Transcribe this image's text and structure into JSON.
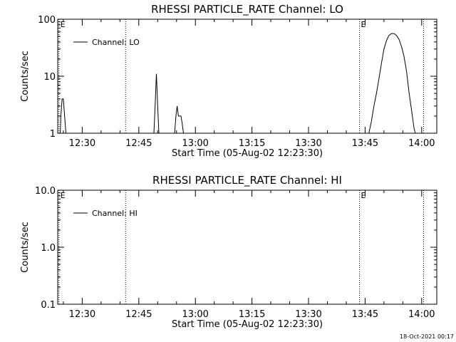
{
  "footer_timestamp": "18-Oct-2021 00:17",
  "chart_data": [
    {
      "type": "line",
      "title": "RHESSI PARTICLE_RATE Channel: LO",
      "xlabel": "Start Time (05-Aug-02 12:23:30)",
      "ylabel": "Counts/sec",
      "yscale": "log",
      "ylim": [
        1,
        100
      ],
      "yticks": [
        1,
        10,
        100
      ],
      "ytick_labels": [
        "1",
        "10",
        "100"
      ],
      "xlim": [
        "12:23:30",
        "14:04:00"
      ],
      "xticks": [
        "12:30",
        "12:45",
        "13:00",
        "13:15",
        "13:30",
        "13:45",
        "14:00"
      ],
      "grid": false,
      "legend": {
        "placement": "top-left",
        "entries": [
          "Channel: LO"
        ]
      },
      "markers": [
        {
          "time": "12:23:50",
          "label": "E"
        },
        {
          "time": "12:41:30",
          "label": ""
        },
        {
          "time": "13:43:30",
          "label": "E"
        },
        {
          "time": "14:00:30",
          "label": ""
        }
      ],
      "series": [
        {
          "name": "Channel: LO",
          "x": [
            "12:24:10",
            "12:24:20",
            "12:24:40",
            "12:25:00",
            "12:25:20",
            "12:25:40",
            "12:49:00",
            "12:49:20",
            "12:49:40",
            "12:50:00",
            "12:50:20",
            "12:50:40",
            "12:54:30",
            "12:54:50",
            "12:55:10",
            "12:55:30",
            "12:55:50",
            "12:56:10",
            "12:56:30",
            "12:56:50",
            "13:46:00",
            "13:46:40",
            "13:47:20",
            "13:48:00",
            "13:48:40",
            "13:49:20",
            "13:50:00",
            "13:50:40",
            "13:51:20",
            "13:52:00",
            "13:52:40",
            "13:53:20",
            "13:54:00",
            "13:54:40",
            "13:55:20",
            "13:56:00",
            "13:56:40",
            "13:57:20",
            "13:58:00",
            "13:58:20"
          ],
          "values": [
            1,
            2,
            4,
            4,
            2,
            1,
            1,
            3,
            11,
            3,
            1,
            1,
            1,
            2,
            3,
            2,
            2,
            2,
            1.5,
            1,
            1,
            1.6,
            3,
            5,
            9,
            17,
            30,
            42,
            52,
            56,
            56,
            52,
            44,
            33,
            22,
            12,
            5,
            2.5,
            1.2,
            1
          ]
        }
      ]
    },
    {
      "type": "line",
      "title": "RHESSI PARTICLE_RATE Channel: HI",
      "xlabel": "Start Time (05-Aug-02 12:23:30)",
      "ylabel": "Counts/sec",
      "yscale": "log",
      "ylim": [
        0.1,
        10
      ],
      "yticks": [
        0.1,
        1,
        10
      ],
      "ytick_labels": [
        "0.1",
        "1.0",
        "10.0"
      ],
      "xlim": [
        "12:23:30",
        "14:04:00"
      ],
      "xticks": [
        "12:30",
        "12:45",
        "13:00",
        "13:15",
        "13:30",
        "13:45",
        "14:00"
      ],
      "grid": false,
      "legend": {
        "placement": "top-left",
        "entries": [
          "Channel: HI"
        ]
      },
      "markers": [
        {
          "time": "12:23:50",
          "label": "E"
        },
        {
          "time": "12:41:30",
          "label": ""
        },
        {
          "time": "13:43:30",
          "label": "E"
        },
        {
          "time": "14:00:30",
          "label": ""
        }
      ],
      "series": [
        {
          "name": "Channel: HI",
          "x": [],
          "values": []
        }
      ]
    }
  ]
}
